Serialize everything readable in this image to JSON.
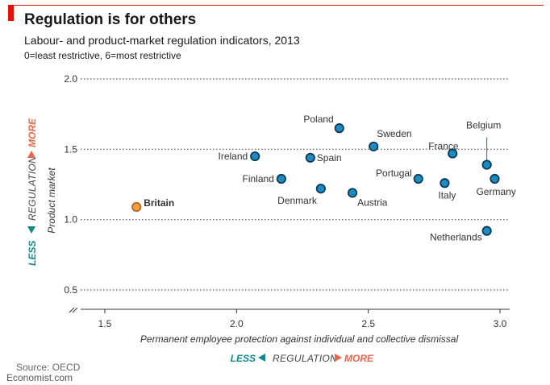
{
  "header": {
    "title": "Regulation is for others",
    "subtitle": "Labour- and product-market regulation indicators, 2013",
    "scale_note": "0=least restrictive, 6=most restrictive"
  },
  "footer": {
    "source": "Source: OECD",
    "brand": "Economist.com"
  },
  "legend": {
    "less": "LESS",
    "regulation": "REGULATION",
    "more": "MORE"
  },
  "colors": {
    "accent_red": "#e3120b",
    "point_fill": "#1a8cc2",
    "point_stroke": "#0d3a57",
    "highlight_fill": "#f2a03d",
    "highlight_stroke": "#b4661b",
    "less_color": "#0f8b8d",
    "more_color": "#e8674a"
  },
  "chart_data": {
    "type": "scatter",
    "xlabel": "Permanent employee protection against individual and collective dismissal",
    "ylabel": "Product market",
    "xlim": [
      1.5,
      3.0
    ],
    "ylim": [
      0.5,
      2.0
    ],
    "x_ticks": [
      1.5,
      2.0,
      2.5,
      3.0
    ],
    "x_tick_labels": [
      "1.5",
      "2.0",
      "2.5",
      "3.0"
    ],
    "y_ticks": [
      0.5,
      1.0,
      1.5,
      2.0
    ],
    "y_tick_labels": [
      "0.5",
      "1.0",
      "1.5",
      "2.0"
    ],
    "y_axis_broken": true,
    "grid": "horizontal dotted",
    "points": [
      {
        "name": "Britain",
        "x": 1.62,
        "y": 1.09,
        "highlight": true
      },
      {
        "name": "Ireland",
        "x": 2.07,
        "y": 1.45
      },
      {
        "name": "Finland",
        "x": 2.17,
        "y": 1.29
      },
      {
        "name": "Spain",
        "x": 2.28,
        "y": 1.44
      },
      {
        "name": "Denmark",
        "x": 2.32,
        "y": 1.22
      },
      {
        "name": "Poland",
        "x": 2.39,
        "y": 1.65
      },
      {
        "name": "Austria",
        "x": 2.44,
        "y": 1.19
      },
      {
        "name": "Sweden",
        "x": 2.52,
        "y": 1.52
      },
      {
        "name": "Portugal",
        "x": 2.69,
        "y": 1.29
      },
      {
        "name": "Italy",
        "x": 2.79,
        "y": 1.26
      },
      {
        "name": "France",
        "x": 2.82,
        "y": 1.47
      },
      {
        "name": "Belgium",
        "x": 2.95,
        "y": 1.39
      },
      {
        "name": "Netherlands",
        "x": 2.95,
        "y": 0.92
      },
      {
        "name": "Germany",
        "x": 2.98,
        "y": 1.29
      }
    ]
  }
}
